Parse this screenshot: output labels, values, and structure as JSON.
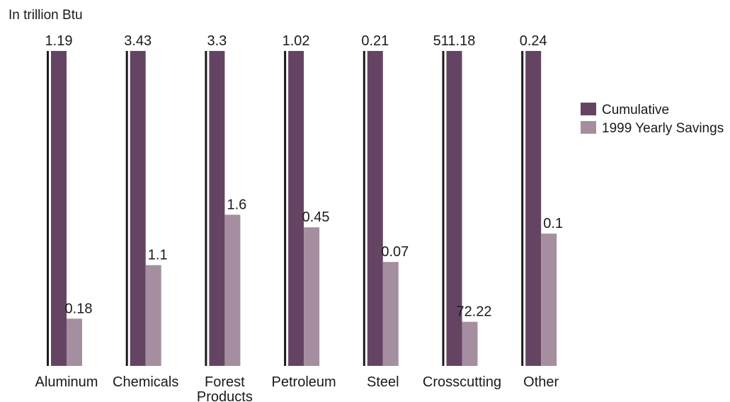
{
  "chart_data": {
    "type": "bar",
    "unit_label": "In trillion Btu",
    "categories": [
      {
        "lines": [
          "Aluminum"
        ]
      },
      {
        "lines": [
          "Chemicals"
        ]
      },
      {
        "lines": [
          "Forest",
          "Products"
        ]
      },
      {
        "lines": [
          "Petroleum"
        ]
      },
      {
        "lines": [
          "Steel"
        ]
      },
      {
        "lines": [
          "Crosscutting"
        ]
      },
      {
        "lines": [
          "Other"
        ]
      }
    ],
    "series": [
      {
        "name": "Cumulative",
        "color": "#654463",
        "values": [
          1.19,
          3.43,
          3.3,
          1.02,
          0.21,
          511.18,
          0.24
        ],
        "labels": [
          "1.19",
          "3.43",
          "3.3",
          "1.02",
          "0.21",
          "511.18",
          "0.24"
        ]
      },
      {
        "name": "1999 Yearly Savings",
        "color": "#a58ea0",
        "values": [
          0.18,
          1.1,
          1.6,
          0.45,
          0.07,
          72.22,
          0.1
        ],
        "labels": [
          "0.18",
          "1.1",
          "1.6",
          "0.45",
          "0.07",
          "72.22",
          "0.1"
        ]
      }
    ],
    "savings_share_of_cumulative": [
      0.15,
      0.32,
      0.48,
      0.44,
      0.33,
      0.14,
      0.42
    ],
    "scale": "each category scaled independently; cumulative bars drawn full height",
    "grid": false,
    "legend_position": "right"
  }
}
